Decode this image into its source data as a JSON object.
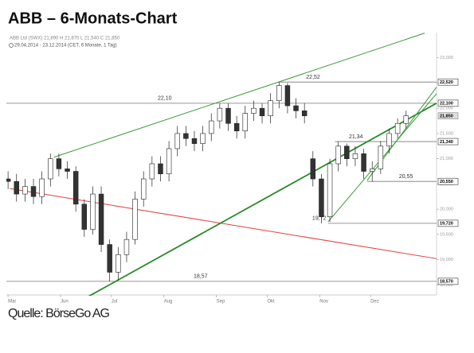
{
  "chart_data": {
    "type": "candlestick",
    "title": "ABB – 6-Monats-Chart",
    "subtitle": "ABB Ltd (SWX) 21,890 H 21,870 L 21,540 C 21,850",
    "period": "29.04.2014 - 23.12.2014 (CET, 6 Monate, 1 Tag)",
    "source": "Quelle: BörseGo AG",
    "x": [
      0,
      5,
      10,
      15,
      20,
      25,
      30,
      35,
      40,
      45,
      50,
      55,
      60,
      65,
      70,
      75,
      80,
      85,
      90,
      95,
      100,
      105,
      110,
      115,
      120,
      125,
      130,
      135,
      140,
      145,
      150,
      155,
      160,
      165,
      170,
      175,
      180,
      185,
      190,
      195,
      200,
      205,
      210,
      215,
      220,
      225,
      230,
      235
    ],
    "open": [
      20.6,
      20.55,
      20.3,
      20.45,
      20.25,
      20.6,
      21.0,
      20.8,
      20.75,
      20.1,
      19.6,
      20.3,
      19.3,
      18.75,
      19.1,
      19.4,
      20.2,
      20.6,
      20.9,
      20.7,
      21.2,
      21.5,
      21.4,
      21.3,
      21.5,
      21.75,
      22.0,
      21.7,
      21.55,
      21.9,
      22.0,
      21.85,
      22.15,
      22.45,
      22.05,
      21.95,
      21.0,
      20.6,
      19.85,
      20.9,
      21.25,
      21.0,
      21.1,
      20.75,
      20.8,
      21.25,
      21.5,
      21.7
    ],
    "high": [
      20.75,
      20.7,
      20.6,
      20.6,
      20.75,
      21.1,
      21.1,
      20.95,
      20.85,
      20.2,
      20.45,
      20.45,
      19.4,
      19.25,
      19.55,
      20.35,
      20.75,
      21.05,
      21.05,
      21.35,
      21.65,
      21.65,
      21.55,
      21.65,
      21.9,
      22.1,
      22.1,
      21.85,
      22.05,
      22.15,
      22.1,
      22.3,
      22.52,
      22.5,
      22.2,
      22.1,
      21.15,
      20.7,
      21.0,
      21.34,
      21.3,
      21.25,
      21.2,
      20.95,
      21.35,
      21.6,
      21.8,
      21.95
    ],
    "low": [
      20.4,
      20.15,
      20.15,
      20.1,
      20.1,
      20.45,
      20.65,
      20.6,
      19.95,
      19.45,
      19.5,
      19.15,
      18.57,
      18.6,
      18.95,
      19.3,
      20.05,
      20.45,
      20.55,
      20.55,
      21.05,
      21.25,
      21.15,
      21.15,
      21.35,
      21.6,
      21.55,
      21.4,
      21.4,
      21.75,
      21.7,
      21.7,
      22.0,
      21.9,
      21.8,
      21.7,
      20.45,
      19.72,
      19.75,
      20.75,
      20.85,
      20.85,
      20.6,
      20.55,
      20.7,
      21.1,
      21.4,
      21.6
    ],
    "close": [
      20.55,
      20.3,
      20.45,
      20.25,
      20.6,
      21.0,
      20.8,
      20.75,
      20.1,
      19.6,
      20.3,
      19.3,
      18.75,
      19.1,
      19.4,
      20.2,
      20.6,
      20.9,
      20.7,
      21.2,
      21.5,
      21.4,
      21.3,
      21.5,
      21.75,
      22.0,
      21.7,
      21.55,
      21.9,
      22.0,
      21.85,
      22.15,
      22.45,
      22.05,
      21.95,
      21.85,
      20.6,
      19.85,
      20.9,
      21.25,
      21.0,
      21.1,
      20.75,
      20.8,
      21.25,
      21.5,
      21.7,
      21.85
    ],
    "up_color": "#ffffff",
    "down_color": "#333333",
    "xlim": [
      -1,
      253
    ],
    "xticks": [
      {
        "value": 0,
        "label": "Mai"
      },
      {
        "value": 31,
        "label": "Jun"
      },
      {
        "value": 61,
        "label": "Jul"
      },
      {
        "value": 92,
        "label": "Aug"
      },
      {
        "value": 123,
        "label": "Sep"
      },
      {
        "value": 153,
        "label": "Okt"
      },
      {
        "value": 184,
        "label": "Nov"
      },
      {
        "value": 214,
        "label": "Dez"
      }
    ],
    "ylim": [
      18.3,
      23.5
    ],
    "yticks": [
      {
        "value": 18.5,
        "label": "18,500"
      },
      {
        "value": 19,
        "label": "19,000"
      },
      {
        "value": 19.5,
        "label": "19,500"
      },
      {
        "value": 20,
        "label": "20,000"
      },
      {
        "value": 20.5,
        "label": "20,500"
      },
      {
        "value": 21,
        "label": "21,000"
      },
      {
        "value": 21.5,
        "label": "21,500"
      },
      {
        "value": 22,
        "label": "22,000"
      },
      {
        "value": 22.5,
        "label": "22,500"
      },
      {
        "value": 23,
        "label": "23,000"
      }
    ],
    "levels": [
      {
        "value": 22.52,
        "label": "22,52",
        "axis_label": "22,520",
        "from": 160
      },
      {
        "value": 22.1,
        "label": "22,10",
        "axis_label": "22,100",
        "from": -1
      },
      {
        "value": 21.34,
        "label": "21,34",
        "axis_label": "21,340",
        "from": 193
      },
      {
        "value": 20.55,
        "label": "20,55",
        "axis_label": "20,550",
        "from": 212
      },
      {
        "value": 19.72,
        "label": "19,72",
        "axis_label": "19,720",
        "from": 189
      },
      {
        "value": 18.57,
        "label": "18,57",
        "axis_label": "18,570",
        "from": -1
      }
    ],
    "last_price": {
      "value": 21.85,
      "label": "21,850"
    },
    "trendlines": [
      {
        "from": [
          27,
          21.03
        ],
        "to": [
          246,
          23.49
        ],
        "color": "#3a9a3a",
        "width": 1
      },
      {
        "from": [
          1,
          20.41
        ],
        "to": [
          253,
          19.02
        ],
        "color": "#e04040",
        "width": 1
      },
      {
        "from": [
          41,
          18.15
        ],
        "to": [
          253,
          22.1
        ],
        "color": "#2a8a2a",
        "width": 1.8
      },
      {
        "from": [
          189,
          19.75
        ],
        "to": [
          253,
          22.29
        ],
        "color": "#3a9a3a",
        "width": 1
      },
      {
        "from": [
          212,
          20.57
        ],
        "to": [
          253,
          22.42
        ],
        "color": "#3a9a3a",
        "width": 1
      }
    ]
  }
}
